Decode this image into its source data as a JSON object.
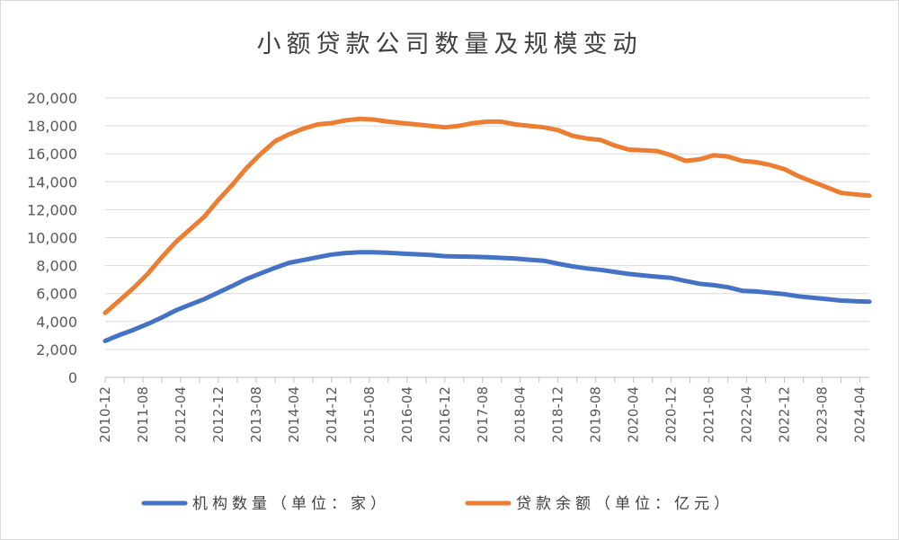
{
  "chart_data": {
    "type": "line",
    "title": "小额贷款公司数量及规模变动",
    "xlabel": "",
    "ylabel": "",
    "ylim": [
      0,
      20000
    ],
    "y_ticks": [
      "0",
      "2,000",
      "4,000",
      "6,000",
      "8,000",
      "10,000",
      "12,000",
      "14,000",
      "16,000",
      "18,000",
      "20,000"
    ],
    "x_tick_labels": [
      "2010-12",
      "2011-08",
      "2012-04",
      "2012-12",
      "2013-08",
      "2014-04",
      "2014-12",
      "2015-08",
      "2016-04",
      "2016-12",
      "2017-08",
      "2018-04",
      "2018-12",
      "2019-08",
      "2020-04",
      "2020-12",
      "2021-08",
      "2022-04",
      "2022-12",
      "2023-08",
      "2024-04"
    ],
    "x_period_months": 4,
    "x_start": "2010-12",
    "x_end": "2024-06",
    "x": [
      "2010-12",
      "2011-03",
      "2011-06",
      "2011-09",
      "2011-12",
      "2012-03",
      "2012-06",
      "2012-09",
      "2012-12",
      "2013-03",
      "2013-06",
      "2013-09",
      "2013-12",
      "2014-03",
      "2014-06",
      "2014-09",
      "2014-12",
      "2015-03",
      "2015-06",
      "2015-09",
      "2015-12",
      "2016-03",
      "2016-06",
      "2016-09",
      "2016-12",
      "2017-03",
      "2017-06",
      "2017-09",
      "2017-12",
      "2018-03",
      "2018-06",
      "2018-09",
      "2018-12",
      "2019-03",
      "2019-06",
      "2019-09",
      "2019-12",
      "2020-03",
      "2020-06",
      "2020-09",
      "2020-12",
      "2021-03",
      "2021-06",
      "2021-09",
      "2021-12",
      "2022-03",
      "2022-06",
      "2022-09",
      "2022-12",
      "2023-03",
      "2023-06",
      "2023-09",
      "2023-12",
      "2024-03",
      "2024-06"
    ],
    "series": [
      {
        "name": "机构数量（单位：家）",
        "color": "#4472C4",
        "values": [
          2614,
          3030,
          3400,
          3820,
          4282,
          4800,
          5200,
          5600,
          6080,
          6550,
          7050,
          7450,
          7839,
          8200,
          8400,
          8600,
          8791,
          8900,
          8950,
          8950,
          8910,
          8860,
          8810,
          8760,
          8673,
          8650,
          8630,
          8600,
          8551,
          8500,
          8420,
          8350,
          8133,
          7950,
          7800,
          7700,
          7551,
          7400,
          7300,
          7200,
          7118,
          6900,
          6700,
          6600,
          6453,
          6200,
          6150,
          6050,
          5958,
          5800,
          5700,
          5600,
          5500,
          5450,
          5420
        ]
      },
      {
        "name": "贷款余额（单位：亿元）",
        "color": "#ED7D31",
        "values": [
          4610,
          5500,
          6400,
          7400,
          8600,
          9700,
          10600,
          11500,
          12700,
          13800,
          15000,
          16000,
          16900,
          17400,
          17800,
          18100,
          18200,
          18400,
          18500,
          18450,
          18300,
          18200,
          18100,
          18000,
          17900,
          18000,
          18200,
          18300,
          18300,
          18100,
          18000,
          17900,
          17700,
          17300,
          17100,
          17000,
          16600,
          16300,
          16250,
          16200,
          15900,
          15500,
          15600,
          15900,
          15800,
          15500,
          15400,
          15200,
          14900,
          14400,
          14000,
          13600,
          13200,
          13100,
          13000
        ]
      }
    ],
    "legend_position": "bottom",
    "grid": "horizontal"
  }
}
